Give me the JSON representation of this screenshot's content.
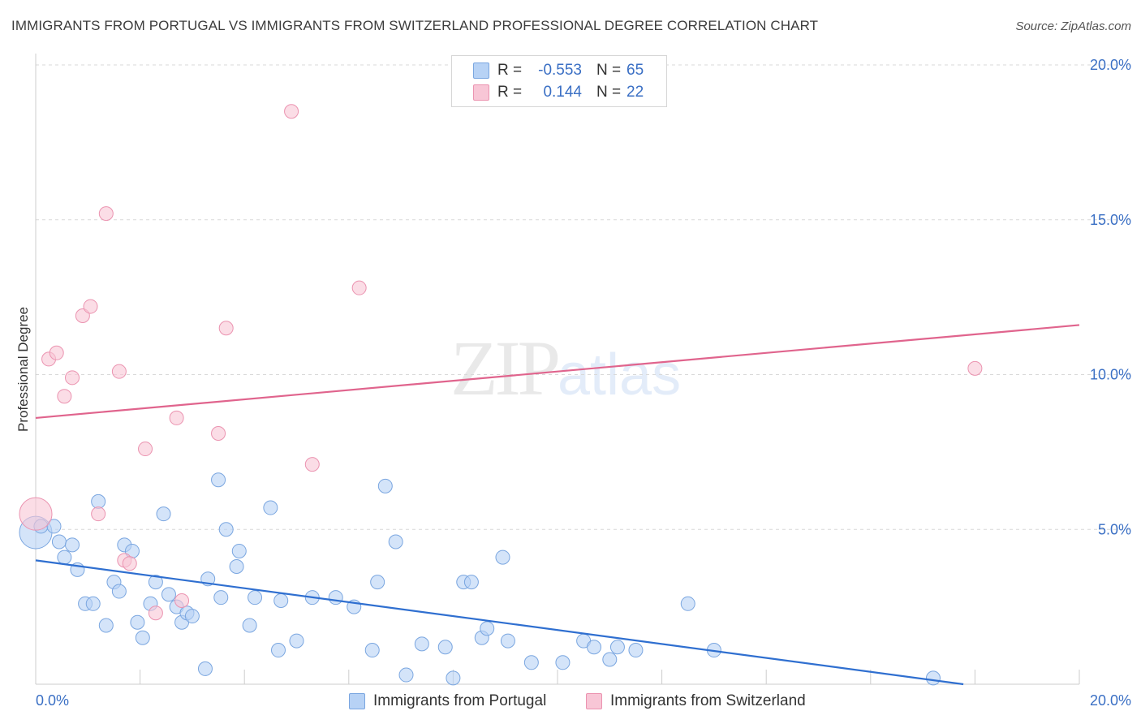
{
  "title": "IMMIGRANTS FROM PORTUGAL VS IMMIGRANTS FROM SWITZERLAND PROFESSIONAL DEGREE CORRELATION CHART",
  "source": "Source: ZipAtlas.com",
  "watermark": {
    "zip": "ZIP",
    "atlas": "atlas"
  },
  "legend": {
    "rows": [
      {
        "r_label": "R =",
        "r_value": "-0.553",
        "n_label": "N =",
        "n_value": "65"
      },
      {
        "r_label": "R =",
        "r_value": "0.144",
        "n_label": "N =",
        "n_value": "22"
      }
    ]
  },
  "colors": {
    "blue_fill": "#b7d2f5",
    "blue_stroke": "#7aa6e0",
    "blue_line": "#2f6fd0",
    "pink_fill": "#f8c6d6",
    "pink_stroke": "#eb93b0",
    "pink_line": "#e0648d",
    "tick_text": "#3a6fc4",
    "grid": "#d9d9d9"
  },
  "chart_data": {
    "type": "scatter",
    "xlabel": "",
    "ylabel": "Professional Degree",
    "xlim": [
      0,
      20
    ],
    "ylim": [
      0,
      20
    ],
    "x_tick_labels": [
      "0.0%",
      "20.0%"
    ],
    "y_tick_labels": [
      "5.0%",
      "10.0%",
      "15.0%",
      "20.0%"
    ],
    "y_ticks": [
      5,
      10,
      15,
      20
    ],
    "grid": true,
    "legend_position": "top-center",
    "series": [
      {
        "name": "Immigrants from Portugal",
        "color": "#b7d2f5",
        "points": [
          [
            0.0,
            4.9
          ],
          [
            0.1,
            5.1
          ],
          [
            0.35,
            5.1
          ],
          [
            0.45,
            4.6
          ],
          [
            0.55,
            4.1
          ],
          [
            0.7,
            4.5
          ],
          [
            0.8,
            3.7
          ],
          [
            0.95,
            2.6
          ],
          [
            1.1,
            2.6
          ],
          [
            1.2,
            5.9
          ],
          [
            1.35,
            1.9
          ],
          [
            1.5,
            3.3
          ],
          [
            1.6,
            3.0
          ],
          [
            1.7,
            4.5
          ],
          [
            1.85,
            4.3
          ],
          [
            1.95,
            2.0
          ],
          [
            2.05,
            1.5
          ],
          [
            2.2,
            2.6
          ],
          [
            2.3,
            3.3
          ],
          [
            2.45,
            5.5
          ],
          [
            2.55,
            2.9
          ],
          [
            2.7,
            2.5
          ],
          [
            2.8,
            2.0
          ],
          [
            2.9,
            2.3
          ],
          [
            3.0,
            2.2
          ],
          [
            3.25,
            0.5
          ],
          [
            3.3,
            3.4
          ],
          [
            3.5,
            6.6
          ],
          [
            3.55,
            2.8
          ],
          [
            3.65,
            5.0
          ],
          [
            3.85,
            3.8
          ],
          [
            3.9,
            4.3
          ],
          [
            4.1,
            1.9
          ],
          [
            4.2,
            2.8
          ],
          [
            4.5,
            5.7
          ],
          [
            4.65,
            1.1
          ],
          [
            4.7,
            2.7
          ],
          [
            5.0,
            1.4
          ],
          [
            5.3,
            2.8
          ],
          [
            5.75,
            2.8
          ],
          [
            6.1,
            2.5
          ],
          [
            6.45,
            1.1
          ],
          [
            6.55,
            3.3
          ],
          [
            6.7,
            6.4
          ],
          [
            6.9,
            4.6
          ],
          [
            7.1,
            0.3
          ],
          [
            7.4,
            1.3
          ],
          [
            7.85,
            1.2
          ],
          [
            8.0,
            0.2
          ],
          [
            8.2,
            3.3
          ],
          [
            8.35,
            3.3
          ],
          [
            8.55,
            1.5
          ],
          [
            8.65,
            1.8
          ],
          [
            8.95,
            4.1
          ],
          [
            9.05,
            1.4
          ],
          [
            9.5,
            0.7
          ],
          [
            10.1,
            0.7
          ],
          [
            10.5,
            1.4
          ],
          [
            10.7,
            1.2
          ],
          [
            11.0,
            0.8
          ],
          [
            11.15,
            1.2
          ],
          [
            11.5,
            1.1
          ],
          [
            12.5,
            2.6
          ],
          [
            13.0,
            1.1
          ],
          [
            17.2,
            0.2
          ]
        ],
        "trend": {
          "x": [
            0,
            20
          ],
          "y": [
            4.0,
            -0.5
          ]
        }
      },
      {
        "name": "Immigrants from Switzerland",
        "color": "#f8c6d6",
        "points": [
          [
            0.0,
            5.5
          ],
          [
            0.25,
            10.5
          ],
          [
            0.4,
            10.7
          ],
          [
            0.55,
            9.3
          ],
          [
            0.7,
            9.9
          ],
          [
            0.9,
            11.9
          ],
          [
            1.05,
            12.2
          ],
          [
            1.2,
            5.5
          ],
          [
            1.35,
            15.2
          ],
          [
            1.6,
            10.1
          ],
          [
            1.7,
            4.0
          ],
          [
            1.8,
            3.9
          ],
          [
            2.1,
            7.6
          ],
          [
            2.3,
            2.3
          ],
          [
            2.7,
            8.6
          ],
          [
            2.8,
            2.7
          ],
          [
            3.5,
            8.1
          ],
          [
            3.65,
            11.5
          ],
          [
            4.9,
            18.5
          ],
          [
            5.3,
            7.1
          ],
          [
            6.2,
            12.8
          ],
          [
            18.0,
            10.2
          ]
        ],
        "trend": {
          "x": [
            0,
            20
          ],
          "y": [
            8.6,
            11.6
          ]
        }
      }
    ]
  }
}
